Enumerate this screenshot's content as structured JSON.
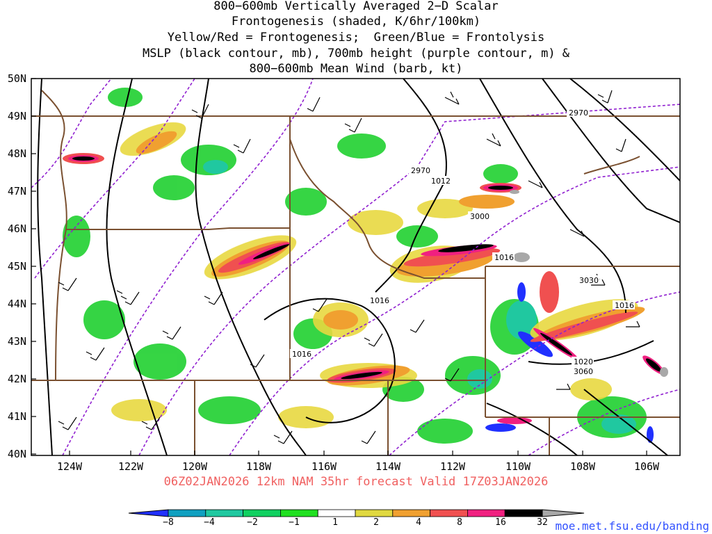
{
  "title": {
    "lines": [
      "800−600mb Vertically Averaged 2−D Scalar",
      "Frontogenesis (shaded, K/6hr/100km)",
      "Yellow/Red = Frontogenesis;  Green/Blue = Frontolysis",
      "MSLP (black contour, mb), 700mb height (purple contour, m) &",
      "800−600mb Mean Wind (barb, kt)"
    ]
  },
  "axes": {
    "lat_labels": [
      "50N",
      "49N",
      "48N",
      "47N",
      "46N",
      "45N",
      "44N",
      "43N",
      "42N",
      "41N",
      "40N"
    ],
    "lon_labels": [
      "124W",
      "122W",
      "120W",
      "118W",
      "116W",
      "114W",
      "112W",
      "110W",
      "108W",
      "106W"
    ]
  },
  "contour_labels": {
    "mslp": [
      "1012",
      "1016",
      "1016",
      "1016",
      "1016",
      "1020"
    ],
    "height": [
      "2970",
      "2970",
      "3000",
      "3030",
      "3060"
    ]
  },
  "forecast": {
    "valid_line": "06Z02JAN2026 12km NAM 35hr forecast Valid 17Z03JAN2026"
  },
  "colorbar": {
    "labels": [
      "−8",
      "−4",
      "−2",
      "−1",
      "1",
      "2",
      "4",
      "8",
      "16",
      "32"
    ],
    "colors": [
      "#2030ff",
      "#10a0c0",
      "#20c8a0",
      "#10d060",
      "#20e020",
      "#ffffff",
      "#e0d840",
      "#f0a030",
      "#f05050",
      "#f02080",
      "#000000",
      "#a8a8a8"
    ]
  },
  "credit": "moe.met.fsu.edu/banding"
}
